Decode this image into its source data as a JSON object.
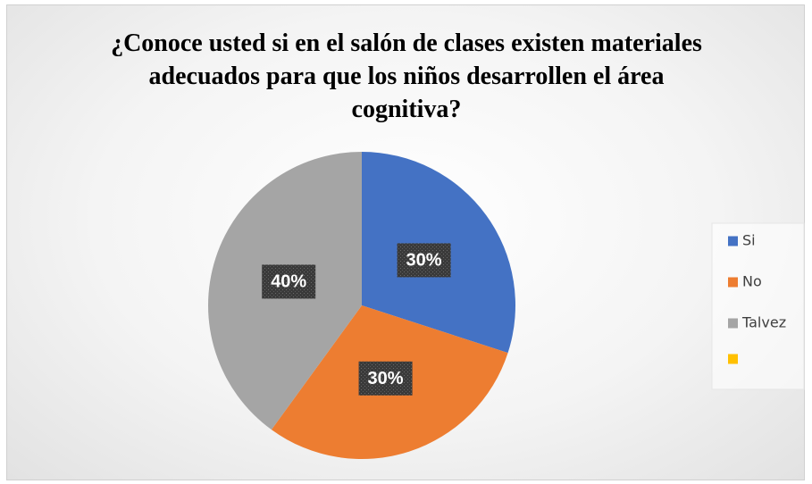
{
  "chart_data": {
    "type": "pie",
    "title": "¿Conoce usted si en el salón de clases existen materiales adecuados para que los niños desarrollen el área cognitiva?",
    "categories": [
      "Si",
      "No",
      "Talvez",
      null
    ],
    "values": [
      30,
      30,
      40,
      0
    ],
    "value_labels": [
      "30%",
      "30%",
      "40%",
      null
    ],
    "colors": [
      "#4472c4",
      "#ed7d31",
      "#a5a5a5",
      "#ffc000"
    ],
    "legend": "right"
  }
}
